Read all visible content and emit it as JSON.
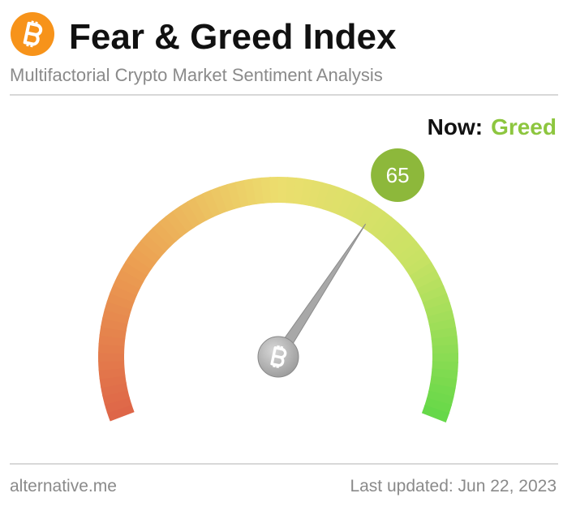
{
  "chart_data": {
    "type": "gauge",
    "title": "Fear & Greed Index",
    "subtitle": "Multifactorial Crypto Market Sentiment Analysis",
    "now_label": "Now:",
    "status": "Greed",
    "status_color": "#8dc63f",
    "value": 65,
    "vlim": [
      0,
      100
    ],
    "bubble_color": "#8db83b",
    "footer_left": "alternative.me",
    "footer_right": "Last updated: Jun 22, 2023"
  }
}
